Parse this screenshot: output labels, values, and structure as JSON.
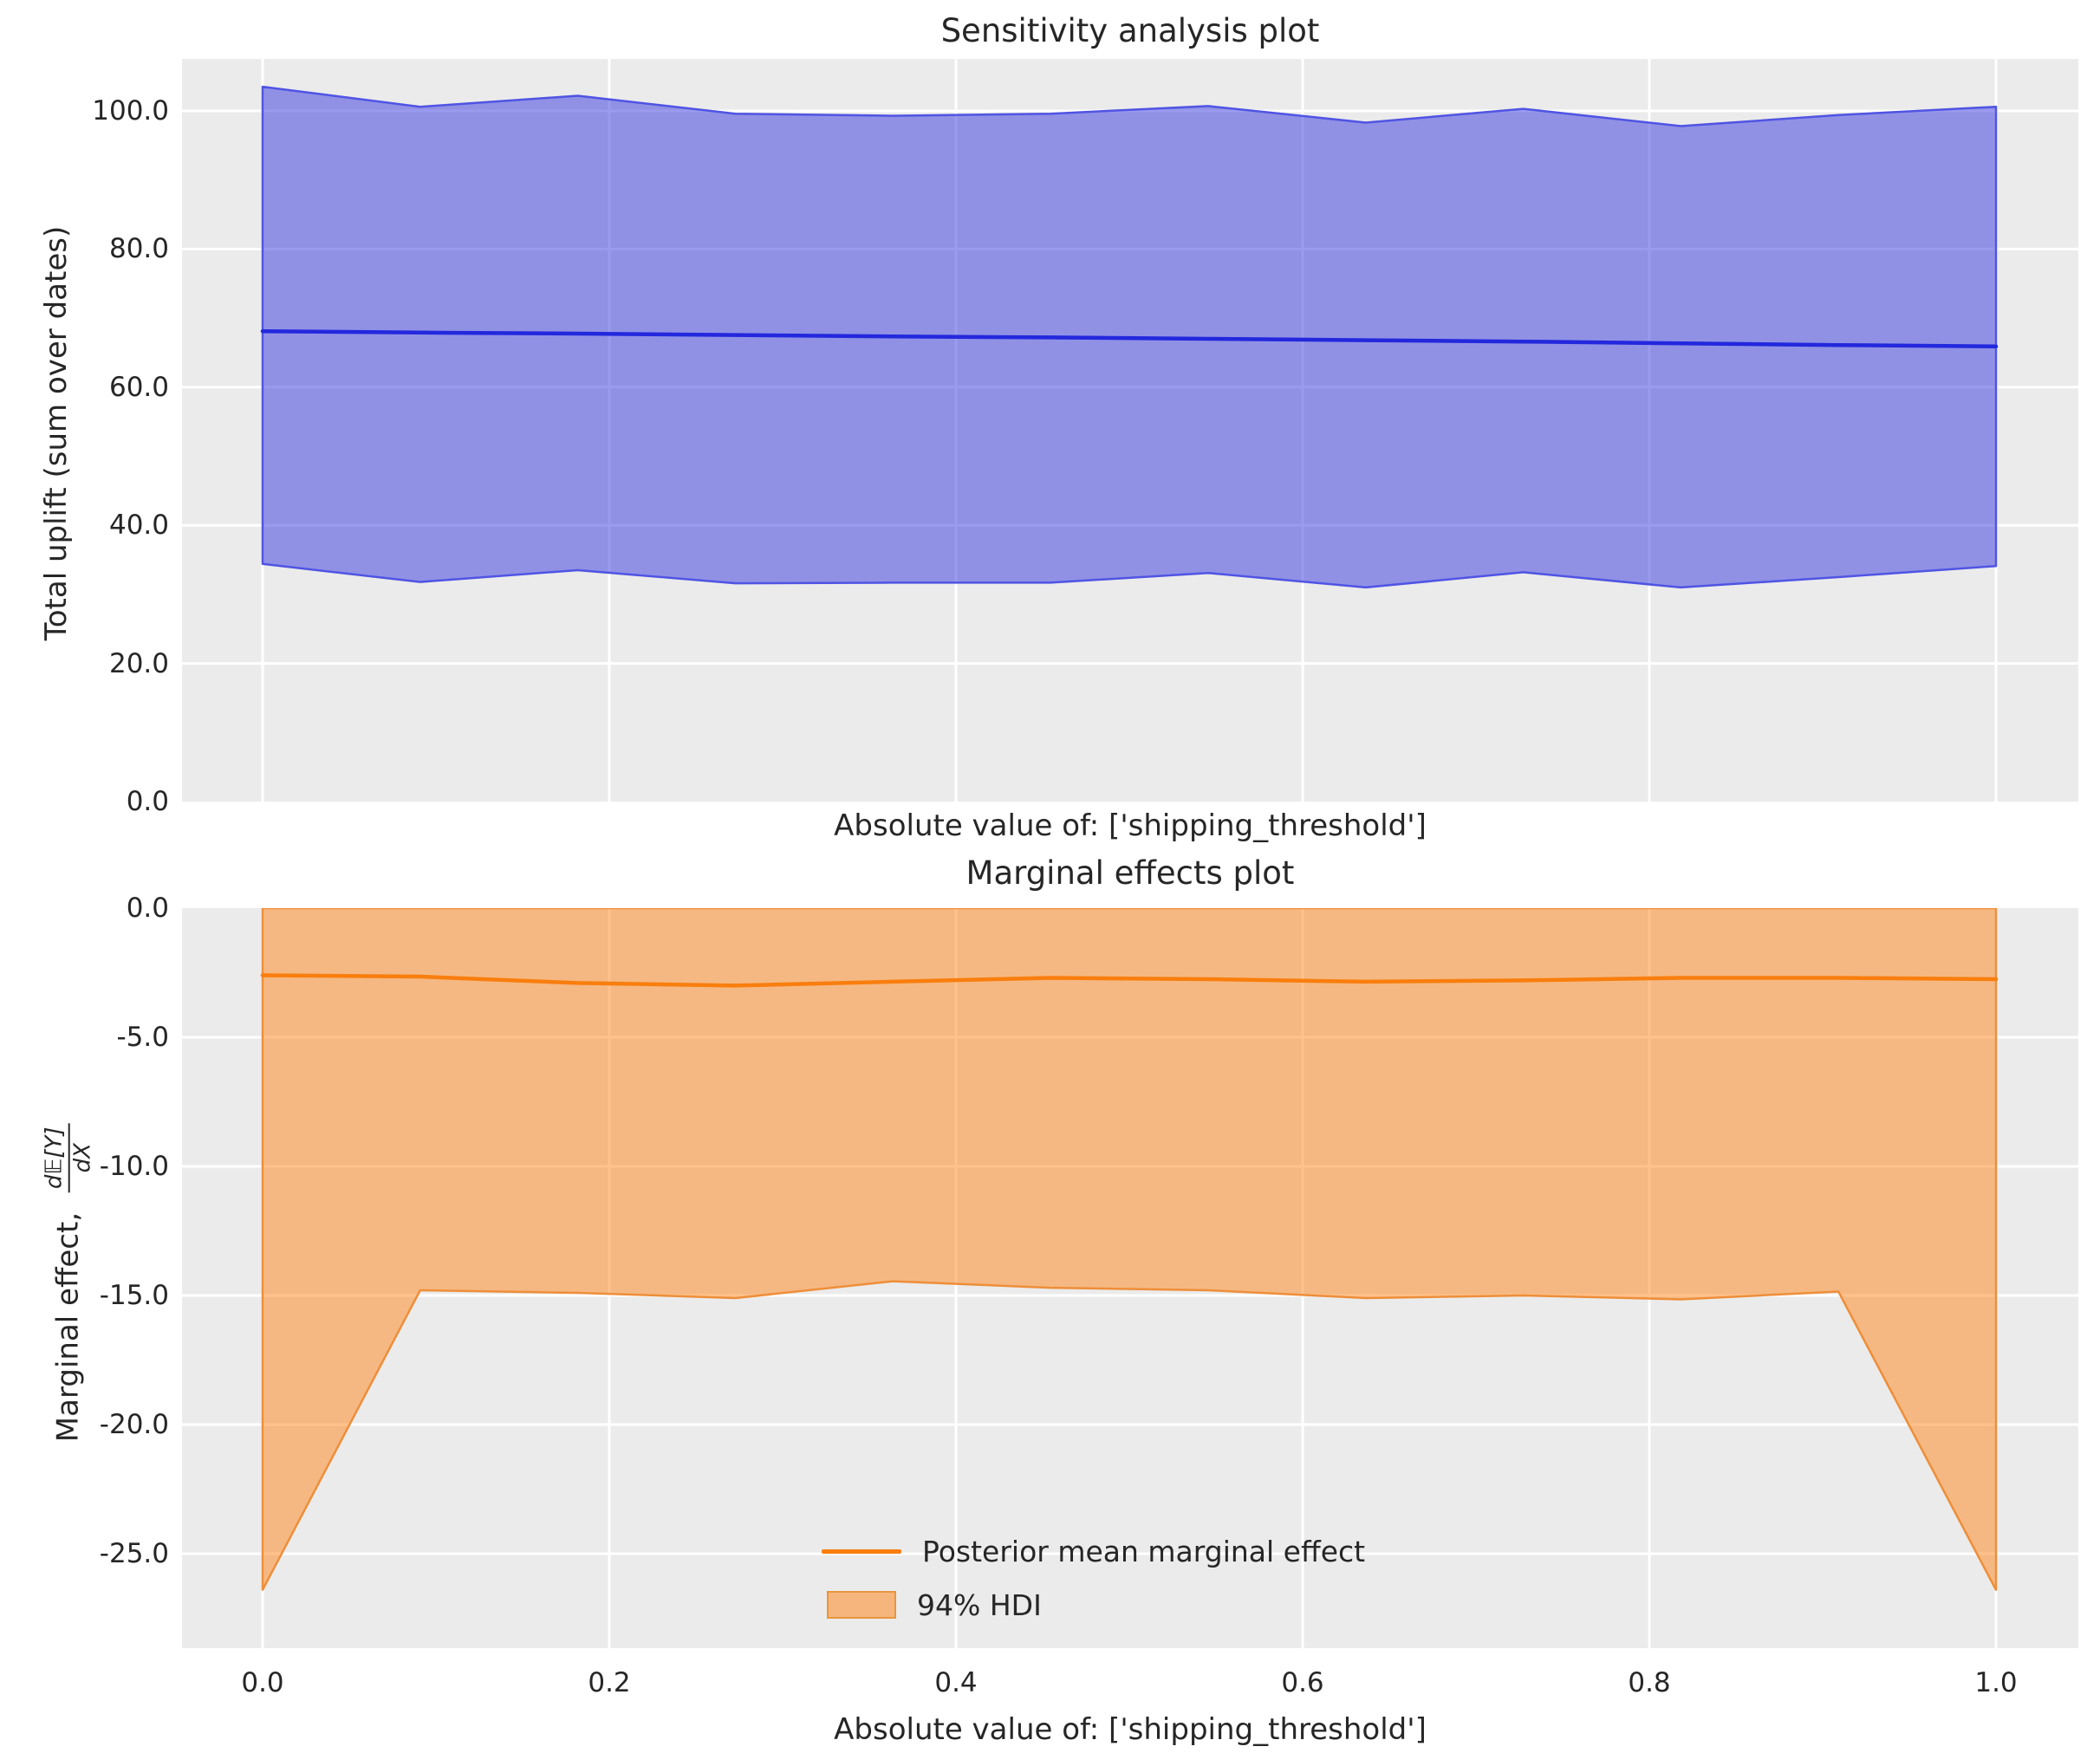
{
  "figure": {
    "background": "#ffffff",
    "axes_background": "#ebebeb",
    "grid_color": "#ffffff",
    "text_color": "#262626"
  },
  "chart_data": [
    {
      "type": "area",
      "title": "Sensitivity analysis plot",
      "xlabel": "Absolute value of: ['shipping_threshold']",
      "ylabel": "Total uplift (sum over dates)",
      "grid": true,
      "xlim": [
        -0.0465,
        1.0475
      ],
      "ylim": [
        0,
        107.5
      ],
      "x": [
        0.0,
        0.0909,
        0.1818,
        0.2727,
        0.3636,
        0.4545,
        0.5455,
        0.6364,
        0.7273,
        0.8182,
        0.9091,
        1.0
      ],
      "series": [
        {
          "name": "posterior-mean-total-uplift",
          "values": [
            68.1,
            67.9,
            67.75,
            67.55,
            67.35,
            67.2,
            67.0,
            66.8,
            66.6,
            66.35,
            66.1,
            65.9
          ]
        },
        {
          "name": "94%-hdi-upper",
          "values": [
            103.5,
            100.6,
            102.2,
            99.6,
            99.3,
            99.6,
            100.7,
            98.3,
            100.3,
            97.8,
            99.4,
            100.6
          ]
        },
        {
          "name": "94%-hdi-lower",
          "values": [
            34.4,
            31.8,
            33.5,
            31.6,
            31.7,
            31.7,
            33.1,
            31.0,
            33.2,
            31.0,
            32.5,
            34.1
          ]
        }
      ],
      "yticks": {
        "values": [
          0,
          20,
          40,
          60,
          80,
          100
        ],
        "labels": [
          "0.0",
          "20.0",
          "40.0",
          "60.0",
          "80.0",
          "100.0"
        ]
      },
      "xticks": {
        "values": [
          0.0,
          0.2,
          0.4,
          0.6,
          0.8,
          1.0
        ],
        "labels": [
          "0.0",
          "0.2",
          "0.4",
          "0.6",
          "0.8",
          "1.0"
        ],
        "show_labels": false
      },
      "colors": {
        "band_fill": "rgba(44,47,222,0.48)",
        "band_edge": "#5054e3",
        "mean_line": "#2328dd"
      }
    },
    {
      "type": "area",
      "title": "Marginal effects plot",
      "xlabel": "Absolute value of: ['shipping_threshold']",
      "ylabel_prefix": "Marginal effect,",
      "ylabel_frac_num": "d𝔼[Y]",
      "ylabel_frac_den": "dX",
      "grid": true,
      "xlim": [
        -0.0465,
        1.0475
      ],
      "ylim": [
        -28.66,
        0
      ],
      "x": [
        0.0,
        0.0909,
        0.1818,
        0.2727,
        0.3636,
        0.4545,
        0.5455,
        0.6364,
        0.7273,
        0.8182,
        0.9091,
        1.0
      ],
      "series": [
        {
          "name": "posterior-mean-marginal-effect",
          "values": [
            -2.6,
            -2.65,
            -2.9,
            -3.0,
            -2.85,
            -2.7,
            -2.75,
            -2.85,
            -2.8,
            -2.7,
            -2.7,
            -2.75
          ]
        },
        {
          "name": "94%-hdi-upper",
          "values": [
            0,
            0,
            0,
            0,
            0,
            0,
            0,
            0,
            0,
            0,
            0,
            0
          ]
        },
        {
          "name": "94%-hdi-lower",
          "values": [
            -26.4,
            -14.8,
            -14.9,
            -15.1,
            -14.45,
            -14.7,
            -14.8,
            -15.1,
            -15.0,
            -15.15,
            -14.85,
            -26.4
          ]
        }
      ],
      "yticks": {
        "values": [
          0,
          -5,
          -10,
          -15,
          -20,
          -25
        ],
        "labels": [
          "0.0",
          "-5.0",
          "-10.0",
          "-15.0",
          "-20.0",
          "-25.0"
        ]
      },
      "xticks": {
        "values": [
          0.0,
          0.2,
          0.4,
          0.6,
          0.8,
          1.0
        ],
        "labels": [
          "0.0",
          "0.2",
          "0.4",
          "0.6",
          "0.8",
          "1.0"
        ],
        "show_labels": true
      },
      "legend": {
        "entries": [
          {
            "label": "Posterior mean marginal effect",
            "type": "line"
          },
          {
            "label": "94% HDI",
            "type": "patch"
          }
        ]
      },
      "colors": {
        "band_fill": "rgba(255,127,14,0.48)",
        "band_edge": "#ee8e39",
        "mean_line": "#f97e0e",
        "legend_patch_fill": "#f5b57c",
        "legend_patch_edge": "#e9963f"
      }
    }
  ]
}
